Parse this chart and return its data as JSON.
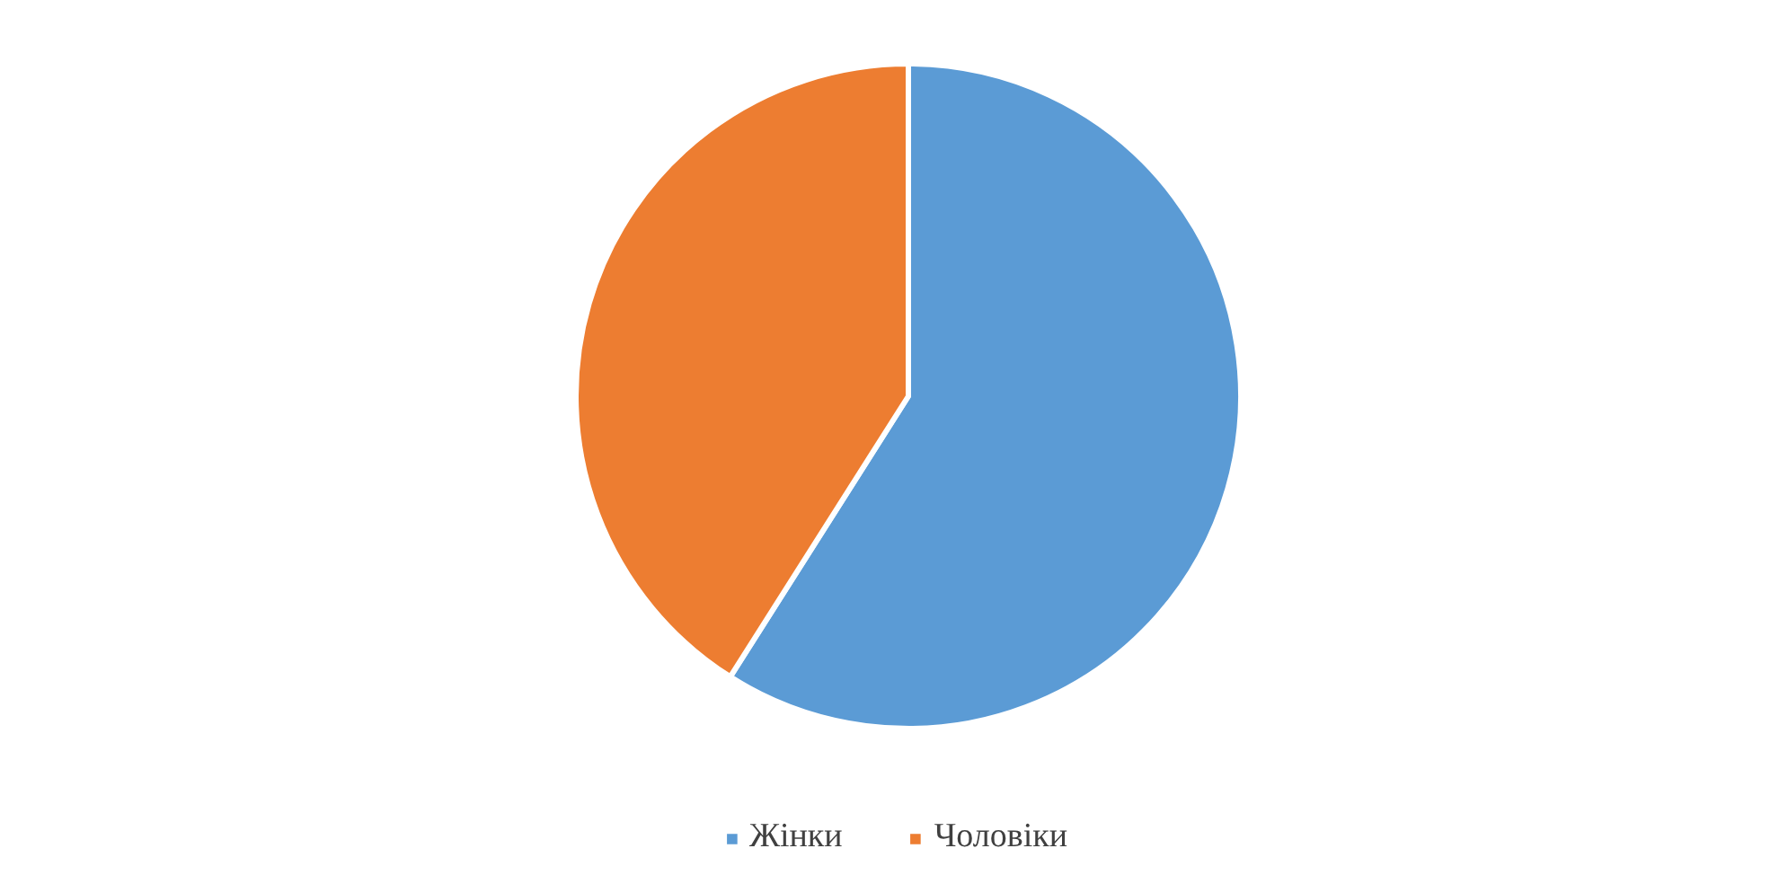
{
  "chart_data": {
    "type": "pie",
    "categories": [
      "Жінки",
      "Чоловіки"
    ],
    "values": [
      59,
      41
    ],
    "colors": [
      "#5b9bd5",
      "#ed7d31"
    ],
    "legend": "bottom"
  }
}
